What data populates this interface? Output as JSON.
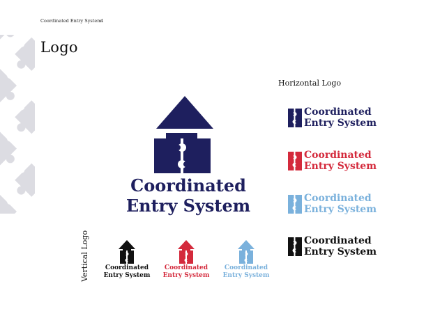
{
  "header": {
    "doc_title": "Coordinated Entry System",
    "page_number": "4"
  },
  "page_title": "Logo",
  "main_logo": {
    "name_line1": "Coordinated",
    "name_line2": "Entry System",
    "color": "#1e1f5e"
  },
  "horizontal_section": {
    "heading": "Horizontal Logo",
    "logos": [
      {
        "variant": "navy",
        "color": "#1e1f5e",
        "line1": "Coordinated",
        "line2": "Entry System"
      },
      {
        "variant": "red",
        "color": "#d42a3c",
        "line1": "Coordinated",
        "line2": "Entry System"
      },
      {
        "variant": "light-blue",
        "color": "#7ab1dc",
        "line1": "Coordinated",
        "line2": "Entry System"
      },
      {
        "variant": "black",
        "color": "#111111",
        "line1": "Coordinated",
        "line2": "Entry System"
      }
    ]
  },
  "vertical_section": {
    "heading": "Vertical Logo",
    "logos": [
      {
        "variant": "black",
        "color": "#111111",
        "line1": "Coordinated",
        "line2": "Entry System"
      },
      {
        "variant": "red",
        "color": "#d42a3c",
        "line1": "Coordinated",
        "line2": "Entry System"
      },
      {
        "variant": "light-blue",
        "color": "#7ab1dc",
        "line1": "Coordinated",
        "line2": "Entry System"
      }
    ]
  },
  "colors": {
    "navy": "#1e1f5e",
    "red": "#d42a3c",
    "light_blue": "#7ab1dc",
    "black": "#111111",
    "pattern_gray": "#dcdce2"
  },
  "icons": [
    "puzzle-house-icon",
    "puzzle-piece-pattern"
  ]
}
